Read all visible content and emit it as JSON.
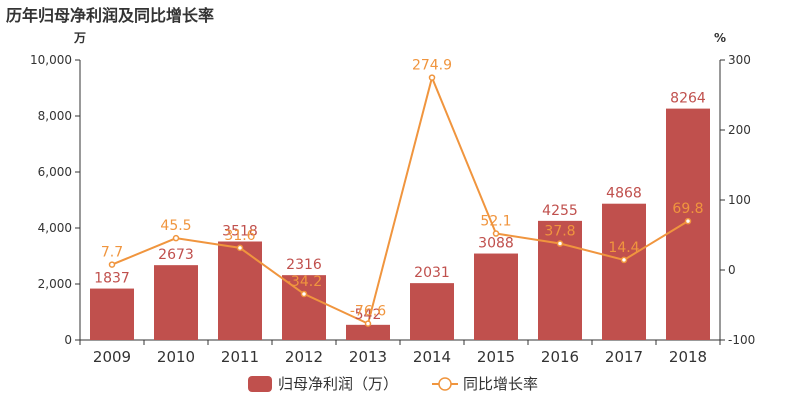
{
  "chart_data": {
    "type": "bar",
    "title": "历年归母净利润及同比增长率",
    "categories": [
      "2009",
      "2010",
      "2011",
      "2012",
      "2013",
      "2014",
      "2015",
      "2016",
      "2017",
      "2018"
    ],
    "series": [
      {
        "name": "归母净利润（万）",
        "type": "bar",
        "axis": "left",
        "color": "#c0504d",
        "values": [
          1837,
          2673,
          3518,
          2316,
          542,
          2031,
          3088,
          4255,
          4868,
          8264
        ],
        "labels": [
          "1837",
          "2673",
          "3518",
          "2316",
          "542",
          "2031",
          "3088",
          "4255",
          "4868",
          "8264"
        ]
      },
      {
        "name": "同比增长率",
        "type": "line",
        "axis": "right",
        "color": "#f0953e",
        "values": [
          7.7,
          45.5,
          31.6,
          -34.2,
          -76.6,
          274.9,
          52.1,
          37.8,
          14.4,
          69.8
        ],
        "labels": [
          "7.7",
          "45.5",
          "31.6",
          "-34.2",
          "-76.6",
          "274.9",
          "52.1",
          "37.8",
          "14.4",
          "69.8"
        ]
      }
    ],
    "yaxis_left": {
      "unit": "万",
      "ylim": [
        0,
        10000
      ],
      "ticks": [
        0,
        2000,
        4000,
        6000,
        8000,
        10000
      ],
      "tick_labels": [
        "0",
        "2,000",
        "4,000",
        "6,000",
        "8,000",
        "10,000"
      ]
    },
    "yaxis_right": {
      "unit": "%",
      "ylim": [
        -100,
        300
      ],
      "ticks": [
        -100,
        0,
        100,
        200,
        300
      ],
      "tick_labels": [
        "-100",
        "0",
        "100",
        "200",
        "300"
      ]
    },
    "grid": false,
    "legend_position": "bottom-center",
    "colors": {
      "axis": "#333333",
      "bar_label": "#c0504d",
      "line_label": "#f0953e"
    }
  }
}
